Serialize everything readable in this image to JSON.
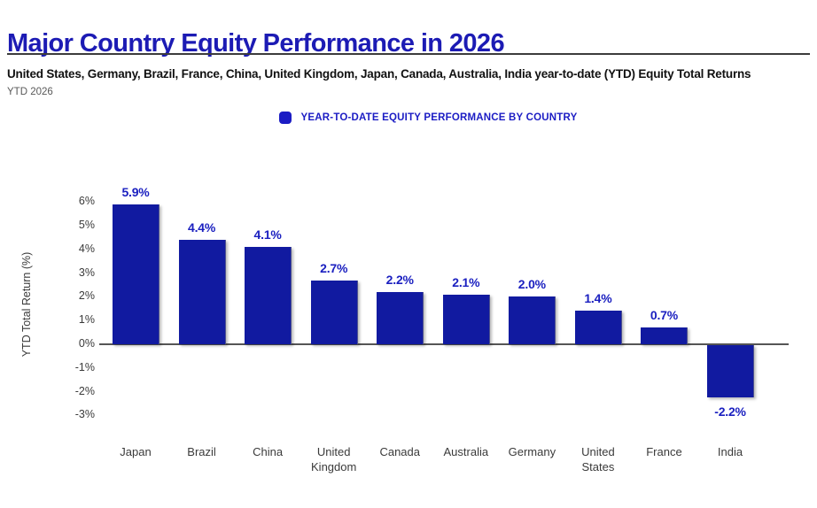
{
  "header": {
    "title": "Major Country Equity Performance in 2026",
    "subtitle": "United States, Germany, Brazil, France, China, United Kingdom, Japan, Canada, Australia, India year-to-date (YTD) Equity Total Returns",
    "period_label": "YTD 2026"
  },
  "legend": {
    "marker_icon": "square-marker",
    "label": "YEAR-TO-DATE EQUITY PERFORMANCE BY COUNTRY"
  },
  "colors": {
    "title_blue": "#1c1bb4",
    "bar_blue": "#111aa0",
    "value_label_blue": "#1b20c0",
    "legend_blue": "#1b1cc4",
    "axis_text": "#3a3a3a"
  },
  "chart_data": {
    "type": "bar",
    "categories": [
      "Japan",
      "Brazil",
      "China",
      "United Kingdom",
      "Canada",
      "Australia",
      "Germany",
      "United States",
      "France",
      "India"
    ],
    "values": [
      5.9,
      4.4,
      4.1,
      2.7,
      2.2,
      2.1,
      2.0,
      1.4,
      0.7,
      -2.2
    ],
    "value_labels": [
      "5.9%",
      "4.4%",
      "4.1%",
      "2.7%",
      "2.2%",
      "2.1%",
      "2.0%",
      "1.4%",
      "0.7%",
      "-2.2%"
    ],
    "title": "Major Country Equity Performance in 2026",
    "xlabel": "",
    "ylabel": "YTD Total Return (%)",
    "ylim": [
      -3,
      6
    ],
    "ytick_step": 1,
    "ytick_labels": [
      "6%",
      "5%",
      "4%",
      "3%",
      "2%",
      "1%",
      "0%",
      "-1%",
      "-2%",
      "-3%"
    ],
    "grid": false,
    "legend_position": "top-center"
  }
}
